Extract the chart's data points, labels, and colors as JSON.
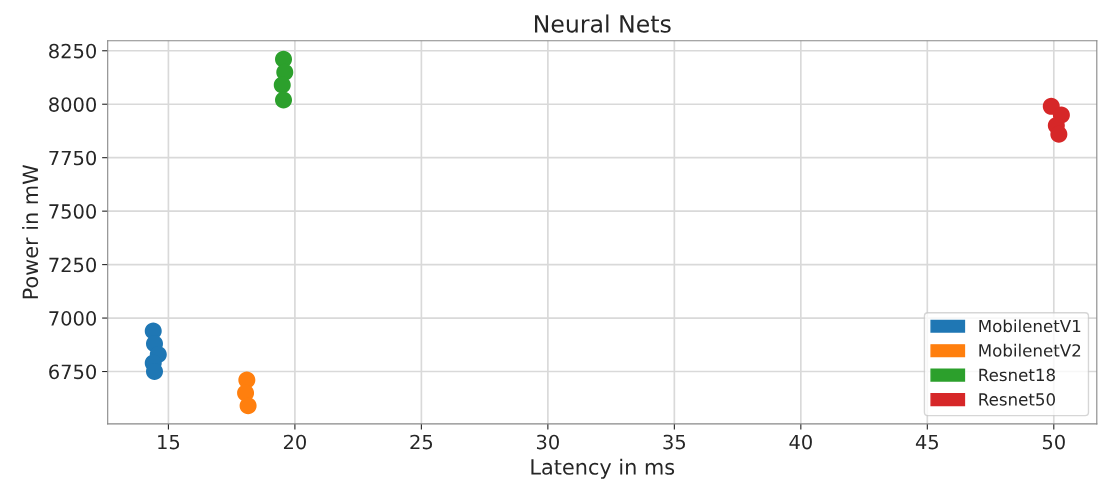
{
  "chart_data": {
    "type": "scatter",
    "title": "Neural Nets",
    "xlabel": "Latency in ms",
    "ylabel": "Power in mW",
    "xlim": [
      12.6,
      51.7
    ],
    "xticks": [
      15,
      20,
      25,
      30,
      35,
      40,
      45,
      50
    ],
    "ylim": [
      6505,
      8297
    ],
    "yticks": [
      6750,
      7000,
      7250,
      7500,
      7750,
      8000,
      8250
    ],
    "grid": true,
    "legend": "bottom right",
    "marker": "circle",
    "series": [
      {
        "name": "MobilenetV1",
        "color": "#1f77b4",
        "x": [
          14.4,
          14.45,
          14.6,
          14.4,
          14.45
        ],
        "values": [
          6940,
          6880,
          6830,
          6790,
          6750
        ]
      },
      {
        "name": "MobilenetV2",
        "color": "#ff7f0e",
        "x": [
          18.1,
          18.05,
          18.15
        ],
        "values": [
          6710,
          6650,
          6590
        ]
      },
      {
        "name": "Resnet18",
        "color": "#2ca02c",
        "x": [
          19.55,
          19.6,
          19.5,
          19.55
        ],
        "values": [
          8210,
          8150,
          8090,
          8020
        ]
      },
      {
        "name": "Resnet50",
        "color": "#d62728",
        "x": [
          49.9,
          50.3,
          50.1,
          50.2
        ],
        "values": [
          7990,
          7950,
          7900,
          7860
        ]
      }
    ]
  }
}
